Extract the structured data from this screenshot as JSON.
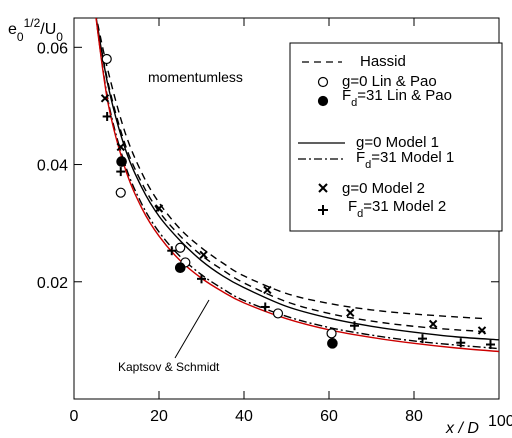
{
  "chart_data": {
    "type": "line",
    "xlabel": "x / D",
    "ylabel": "e0^1/2/U0",
    "xlim": [
      0,
      100
    ],
    "ylim": [
      0.0,
      0.065
    ],
    "x_ticks": [
      0,
      20,
      40,
      60,
      80,
      100
    ],
    "y_ticks": [
      0.02,
      0.04,
      0.06
    ],
    "grid": false,
    "legend_position": "top-right",
    "annotations": [
      "momentumless",
      "Kaptsov & Schmidt"
    ],
    "legend": [
      {
        "label": "Hassid",
        "marker": "none",
        "line": "dashed"
      },
      {
        "label": "g=0 Lin & Pao",
        "marker": "open-circle",
        "line": "none"
      },
      {
        "label": "Fd=31 Lin & Pao",
        "marker": "filled-circle",
        "line": "none"
      },
      {
        "label": "g=0 Model 1",
        "marker": "none",
        "line": "solid"
      },
      {
        "label": "Fd=31 Model 1",
        "marker": "none",
        "line": "dash-dot"
      },
      {
        "label": "g=0 Model 2",
        "marker": "x",
        "line": "none"
      },
      {
        "label": "Fd=31 Model 2",
        "marker": "plus",
        "line": "none"
      }
    ],
    "series": [
      {
        "name": "Hassid",
        "style": "dashed",
        "color": "#000000",
        "x": [
          5,
          8,
          12,
          16,
          20,
          25,
          30,
          35,
          40,
          50,
          60,
          70,
          80,
          90,
          97
        ],
        "y": [
          0.066,
          0.056,
          0.0455,
          0.0385,
          0.0335,
          0.029,
          0.0258,
          0.0232,
          0.021,
          0.018,
          0.0163,
          0.0152,
          0.0145,
          0.014,
          0.0137
        ]
      },
      {
        "name": "Hassid",
        "style": "dashed",
        "color": "#000000",
        "x": [
          5,
          8,
          12,
          16,
          20,
          25,
          30,
          35,
          40,
          50,
          60,
          70,
          80,
          90,
          97
        ],
        "y": [
          0.066,
          0.054,
          0.0435,
          0.0368,
          0.032,
          0.0278,
          0.0245,
          0.022,
          0.0198,
          0.0166,
          0.0146,
          0.0133,
          0.0124,
          0.0118,
          0.0115
        ]
      },
      {
        "name": "g=0 Model 1",
        "style": "solid",
        "color": "#000000",
        "x": [
          5,
          8,
          12,
          16,
          20,
          25,
          30,
          35,
          40,
          50,
          60,
          70,
          80,
          90,
          100
        ],
        "y": [
          0.066,
          0.0535,
          0.0428,
          0.036,
          0.0312,
          0.027,
          0.0236,
          0.021,
          0.019,
          0.0158,
          0.0138,
          0.0124,
          0.0114,
          0.0106,
          0.0101
        ]
      },
      {
        "name": "Fd=31 Model 1",
        "style": "dash-dot",
        "color": "#000000",
        "x": [
          5,
          8,
          12,
          16,
          20,
          25,
          30,
          35,
          40,
          50,
          60,
          70,
          80,
          90,
          100
        ],
        "y": [
          0.066,
          0.051,
          0.04,
          0.0332,
          0.0285,
          0.0243,
          0.0212,
          0.0188,
          0.0168,
          0.0141,
          0.0122,
          0.0109,
          0.0099,
          0.0092,
          0.0086
        ]
      },
      {
        "name": "Kaptsov & Schmidt",
        "style": "solid",
        "color": "#cc0000",
        "x": [
          5,
          8,
          12,
          16,
          20,
          25,
          30,
          35,
          40,
          50,
          60,
          70,
          80,
          90,
          100
        ],
        "y": [
          0.066,
          0.0505,
          0.0394,
          0.0325,
          0.0278,
          0.0236,
          0.0206,
          0.0183,
          0.0164,
          0.0137,
          0.0118,
          0.0105,
          0.0095,
          0.0087,
          0.0081
        ]
      },
      {
        "name": "g=0 Lin & Pao",
        "style": "open-circle",
        "color": "#000000",
        "x": [
          7.7,
          11.0,
          25.0,
          26.2,
          48.0,
          60.6
        ],
        "y": [
          0.058,
          0.0352,
          0.0258,
          0.0233,
          0.0146,
          0.0112
        ]
      },
      {
        "name": "Fd=31 Lin & Pao",
        "style": "filled-circle",
        "color": "#000000",
        "x": [
          11.2,
          25.0,
          60.8
        ],
        "y": [
          0.0405,
          0.0224,
          0.0095
        ]
      },
      {
        "name": "g=0 Model 2",
        "style": "x",
        "color": "#000000",
        "x": [
          7.3,
          11.0,
          20.0,
          30.5,
          45.5,
          65.0,
          84.5,
          96.0
        ],
        "y": [
          0.0513,
          0.043,
          0.0325,
          0.0246,
          0.0186,
          0.0147,
          0.0128,
          0.0117
        ]
      },
      {
        "name": "Fd=31 Model 2",
        "style": "plus",
        "color": "#000000",
        "x": [
          7.8,
          11.0,
          23.0,
          30.0,
          45.0,
          66.0,
          82.0,
          91.0,
          98.0
        ],
        "y": [
          0.0482,
          0.0388,
          0.0253,
          0.0205,
          0.0157,
          0.0125,
          0.0103,
          0.0096,
          0.0093
        ]
      }
    ]
  }
}
